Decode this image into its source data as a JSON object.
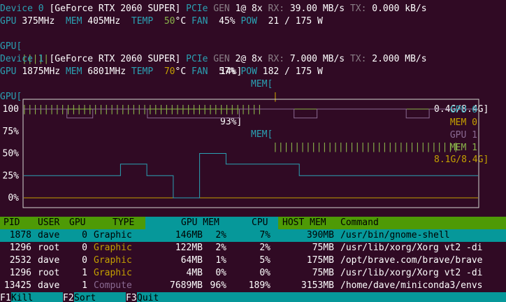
{
  "devices": [
    {
      "label": "Device 0",
      "name": "[GeForce RTX 2060 SUPER]",
      "pcie_label": "PCIe",
      "gen_label": "GEN",
      "gen_value": "1@ 8x",
      "rx_label": "RX:",
      "rx_value": "39.00 MB/s",
      "tx_label": "TX:",
      "tx_value": "0.000 kB/s",
      "gpu_label": "GPU",
      "gpu_clock": "375MHz",
      "mem_label": "MEM",
      "mem_clock": "405MHz",
      "temp_label": "TEMP",
      "temp_value": "50",
      "temp_unit": "°C",
      "fan_label": "FAN",
      "fan_value": "45%",
      "pow_label": "POW",
      "pow_value": "21 / 175 W",
      "gpu_bar_label": "GPU[",
      "gpu_bar_ticks": "|||||",
      "gpu_bar_pct": "14%]",
      "mem_bar_label": "MEM[",
      "mem_bar_ticks": "|",
      "mem_bar_value": "0.4G/8.4G]"
    },
    {
      "label": "Device 1",
      "name": "[GeForce RTX 2060 SUPER]",
      "pcie_label": "PCIe",
      "gen_label": "GEN",
      "gen_value": "2@ 8x",
      "rx_label": "RX:",
      "rx_value": "7.000 MB/s",
      "tx_label": "TX:",
      "tx_value": "2.000 MB/s",
      "gpu_label": "GPU",
      "gpu_clock": "1875MHz",
      "mem_label": "MEM",
      "mem_clock": "6801MHz",
      "temp_label": "TEMP",
      "temp_value": "70",
      "temp_unit": "°C",
      "fan_label": "FAN",
      "fan_value": "57%",
      "pow_label": "POW",
      "pow_value": "182 / 175 W",
      "gpu_bar_label": "GPU[",
      "gpu_bar_ticks": "||||||||||||||||||||||||||||||||||||||||||||",
      "gpu_bar_pct": "93%]",
      "mem_bar_label": "MEM[",
      "mem_bar_ticks": "||||||||||||||||||||||||||||||||||",
      "mem_bar_value": "8.1G/8.4G]"
    }
  ],
  "chart_data": {
    "type": "line",
    "y_tick_labels": [
      "100",
      "75%",
      "50%",
      "25%",
      "0%"
    ],
    "y_ticks": [
      100,
      75,
      50,
      25,
      0
    ],
    "ylim": [
      0,
      100
    ],
    "legend_position": "top-right",
    "series": [
      {
        "name": "GPU 0",
        "color": "#2aa1b3",
        "values": [
          25,
          25,
          25,
          25,
          25,
          25,
          25,
          25,
          25,
          25,
          25,
          25,
          25,
          25,
          25,
          25,
          25,
          25,
          25,
          25,
          25,
          25,
          25,
          25,
          25,
          25,
          25,
          25,
          25,
          25,
          25,
          25,
          25,
          38,
          38,
          38,
          38,
          38,
          38,
          38,
          38,
          38,
          25,
          25,
          25,
          25,
          25,
          25,
          25,
          25,
          25,
          0,
          0,
          0,
          0,
          0,
          0,
          0,
          0,
          0,
          50,
          50,
          50,
          50,
          50,
          50,
          50,
          50,
          50,
          38,
          38,
          38,
          38,
          38,
          38,
          38,
          38,
          38,
          38,
          38,
          38,
          38,
          38,
          38,
          38,
          38,
          38,
          38,
          38,
          38,
          38,
          38,
          38,
          38,
          25,
          25,
          25,
          25,
          25,
          25,
          25,
          25,
          25,
          25,
          25,
          25,
          25,
          25,
          25,
          25,
          25,
          25,
          25,
          25,
          25,
          25,
          25,
          25,
          25,
          25,
          25,
          25,
          25,
          25,
          25,
          25,
          25,
          25,
          25,
          25,
          25,
          25,
          25,
          25,
          25,
          25,
          25,
          25,
          25,
          25,
          25,
          25,
          25,
          25,
          25,
          25,
          25,
          25,
          25,
          25,
          25,
          25,
          25,
          25,
          25,
          25
        ]
      },
      {
        "name": "MEM 0",
        "color": "#c4a000",
        "values": [
          0,
          0,
          0,
          0,
          0,
          0,
          0,
          0,
          0,
          0,
          0,
          0,
          0,
          0,
          0,
          0,
          0,
          0,
          0,
          0,
          0,
          0,
          0,
          0,
          0,
          0,
          0,
          0,
          0,
          0,
          0,
          0,
          0,
          0,
          0,
          0,
          0,
          0,
          0,
          0,
          0,
          0,
          0,
          0,
          0,
          0,
          0,
          0,
          0,
          0,
          0,
          0,
          0,
          0,
          0,
          0,
          0,
          0,
          0,
          0,
          0,
          0,
          0,
          0,
          0,
          0,
          0,
          0,
          0,
          0,
          0,
          0,
          0,
          0,
          0,
          0,
          0,
          0,
          0,
          0,
          0,
          0,
          0,
          0,
          0,
          0,
          0,
          0,
          0,
          0,
          0,
          0,
          0,
          0,
          0,
          0,
          0,
          0,
          0,
          0,
          0,
          0,
          0,
          0,
          0,
          0,
          0,
          0,
          0,
          0,
          0,
          0,
          0,
          0,
          0,
          0,
          0,
          0,
          0,
          0,
          0,
          0,
          0,
          0,
          0,
          0,
          0,
          0,
          0,
          0,
          0,
          0,
          0,
          0,
          0,
          0,
          0,
          0,
          0,
          0,
          0,
          0,
          0,
          0,
          0,
          0,
          0,
          0,
          0,
          0,
          0,
          0,
          0,
          0,
          0,
          0,
          0,
          0
        ]
      },
      {
        "name": "GPU 1",
        "color": "#8a6a92",
        "values": [
          100,
          100,
          100,
          100,
          100,
          100,
          100,
          100,
          100,
          100,
          100,
          100,
          100,
          100,
          100,
          90,
          90,
          90,
          90,
          90,
          90,
          90,
          90,
          90,
          100,
          100,
          100,
          100,
          100,
          100,
          100,
          100,
          100,
          100,
          100,
          100,
          100,
          100,
          100,
          100,
          100,
          100,
          100,
          90,
          90,
          90,
          90,
          90,
          90,
          90,
          90,
          90,
          90,
          90,
          90,
          90,
          90,
          90,
          90,
          90,
          90,
          90,
          90,
          90,
          90,
          90,
          90,
          90,
          90,
          90,
          90,
          90,
          90,
          90,
          90,
          100,
          100,
          100,
          100,
          100,
          100,
          100,
          100,
          100,
          100,
          100,
          100,
          100,
          100,
          100,
          100,
          100,
          100,
          100,
          90,
          90,
          90,
          90,
          90,
          90,
          90,
          90,
          100,
          100,
          100,
          100,
          100,
          100,
          100,
          100,
          100,
          100,
          100,
          100,
          100,
          100,
          100,
          100,
          100,
          100,
          100,
          100,
          100,
          100,
          100,
          100,
          100,
          100,
          100,
          100,
          100,
          100,
          100,
          90,
          90,
          90,
          90,
          90,
          90,
          90,
          90,
          100,
          100,
          100,
          100,
          100,
          100,
          100,
          100,
          100,
          100,
          100,
          100,
          100,
          100,
          100,
          100,
          100,
          100
        ]
      },
      {
        "name": "MEM 1",
        "color": "#8ab44a",
        "values": [
          100,
          100,
          100,
          100,
          100,
          100,
          100,
          100,
          100,
          100,
          100,
          100,
          100,
          100,
          100,
          100,
          100,
          100,
          100,
          100,
          100,
          100,
          100,
          100,
          100,
          100,
          100,
          100,
          100,
          100,
          100,
          100,
          100,
          100,
          100,
          100,
          100,
          100,
          100,
          100,
          100,
          100,
          100,
          100,
          100,
          100,
          100,
          100,
          100,
          100,
          100,
          100,
          100,
          100,
          100,
          100,
          100,
          100,
          100,
          100,
          100,
          100,
          100,
          100,
          100,
          100,
          100,
          100,
          100,
          100,
          100,
          100,
          100,
          100,
          100,
          100,
          100,
          100,
          100,
          100,
          100,
          100,
          100,
          100,
          100,
          100,
          100,
          100,
          100,
          100,
          100,
          100,
          100,
          100,
          100,
          100,
          100,
          100,
          100,
          100,
          100,
          100,
          100,
          100,
          100,
          100,
          100,
          100,
          100,
          100,
          100,
          100,
          100,
          100,
          100,
          100,
          100,
          100,
          100,
          100,
          100,
          100,
          100,
          100,
          100,
          100,
          100,
          100,
          100,
          100,
          100,
          100,
          100,
          100,
          100,
          100,
          100,
          100,
          100,
          100,
          100,
          100,
          100,
          100,
          100,
          100,
          100,
          100,
          100,
          100,
          100,
          100,
          100,
          100,
          100,
          100,
          100,
          100
        ]
      }
    ]
  },
  "process_table": {
    "headers": [
      "PID",
      "USER",
      "GPU",
      "TYPE",
      "GPU MEM",
      "CPU",
      "HOST MEM",
      "Command"
    ],
    "rows": [
      {
        "pid": "1878",
        "user": "dave",
        "gpu": "0",
        "type": "Graphic",
        "type_color": "#000000",
        "gpu_mem": "146MB",
        "gpu_mem_pct": "2%",
        "cpu": "7%",
        "host_mem": "390MB",
        "command": "/usr/bin/gnome-shell",
        "selected": true
      },
      {
        "pid": "1296",
        "user": "root",
        "gpu": "0",
        "type": "Graphic",
        "type_color": "#c4a000",
        "gpu_mem": "122MB",
        "gpu_mem_pct": "2%",
        "cpu": "2%",
        "host_mem": "75MB",
        "command": "/usr/lib/xorg/Xorg vt2 -di",
        "selected": false
      },
      {
        "pid": "2532",
        "user": "dave",
        "gpu": "0",
        "type": "Graphic",
        "type_color": "#c4a000",
        "gpu_mem": "64MB",
        "gpu_mem_pct": "1%",
        "cpu": "5%",
        "host_mem": "175MB",
        "command": "/opt/brave.com/brave/brave",
        "selected": false
      },
      {
        "pid": "1296",
        "user": "root",
        "gpu": "1",
        "type": "Graphic",
        "type_color": "#c4a000",
        "gpu_mem": "4MB",
        "gpu_mem_pct": "0%",
        "cpu": "0%",
        "host_mem": "75MB",
        "command": "/usr/lib/xorg/Xorg vt2 -di",
        "selected": false
      },
      {
        "pid": "13425",
        "user": "dave",
        "gpu": "1",
        "type": "Compute",
        "type_color": "#8a6a92",
        "gpu_mem": "7689MB",
        "gpu_mem_pct": "96%",
        "cpu": "189%",
        "host_mem": "3153MB",
        "command": "/home/dave/miniconda3/envs",
        "selected": false
      }
    ]
  },
  "function_keys": [
    {
      "key": "F1",
      "label": "Kill"
    },
    {
      "key": "F2",
      "label": "Sort"
    },
    {
      "key": "F3",
      "label": "Quit"
    }
  ]
}
